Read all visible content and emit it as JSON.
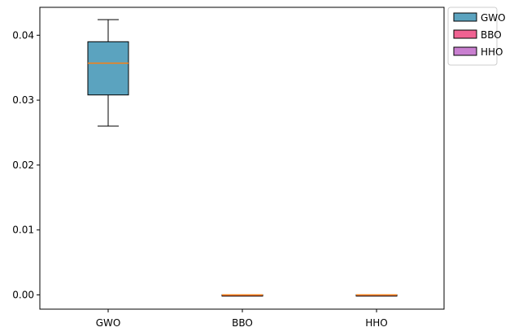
{
  "chart_data": {
    "type": "box",
    "title": "",
    "xlabel": "",
    "ylabel": "",
    "categories": [
      "GWO",
      "BBO",
      "HHO"
    ],
    "ylim": [
      -0.0022,
      0.0443
    ],
    "yticks": [
      0.0,
      0.01,
      0.02,
      0.03,
      0.04
    ],
    "ytick_labels": [
      "0.00",
      "0.01",
      "0.02",
      "0.03",
      "0.04"
    ],
    "boxes": [
      {
        "name": "GWO",
        "whisker_low": 0.026,
        "q1": 0.0308,
        "median": 0.0357,
        "q3": 0.039,
        "whisker_high": 0.0424,
        "color": "#5ba3bf"
      },
      {
        "name": "BBO",
        "whisker_low": 0.0,
        "q1": 0.0,
        "median": 0.0,
        "q3": 0.0,
        "whisker_high": 0.0,
        "color": "#f06292"
      },
      {
        "name": "HHO",
        "whisker_low": 0.0,
        "q1": 0.0,
        "median": 0.0,
        "q3": 0.0,
        "whisker_high": 0.0,
        "color": "#c97fd0"
      }
    ],
    "median_color": "#ff7f0e",
    "legend": {
      "placement": "upper-right-outside",
      "entries": [
        {
          "label": "GWO",
          "color": "#5ba3bf"
        },
        {
          "label": "BBO",
          "color": "#f06292"
        },
        {
          "label": "HHO",
          "color": "#c97fd0"
        }
      ]
    },
    "grid": false
  }
}
